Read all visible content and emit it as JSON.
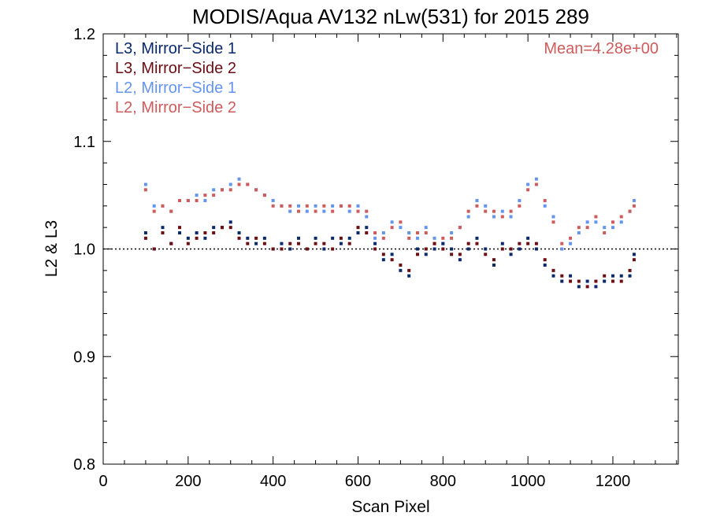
{
  "chart_data": {
    "type": "scatter",
    "title": "MODIS/Aqua AV132 nLw(531) for 2015 289",
    "xlabel": "Scan Pixel",
    "ylabel": "L2 & L3",
    "xlim": [
      0,
      1354
    ],
    "ylim": [
      0.8,
      1.2
    ],
    "x_ticks": [
      {
        "value": 0,
        "label": "0"
      },
      {
        "value": 200,
        "label": "200"
      },
      {
        "value": 400,
        "label": "400"
      },
      {
        "value": 600,
        "label": "600"
      },
      {
        "value": 800,
        "label": "800"
      },
      {
        "value": 1000,
        "label": "1000"
      },
      {
        "value": 1200,
        "label": "1200"
      }
    ],
    "y_ticks": [
      {
        "value": 0.8,
        "label": "0.8"
      },
      {
        "value": 0.9,
        "label": "0.9"
      },
      {
        "value": 1.0,
        "label": "1.0"
      },
      {
        "value": 1.1,
        "label": "1.1"
      },
      {
        "value": 1.2,
        "label": "1.2"
      }
    ],
    "reference_line": 1.0,
    "annotation": "Mean=4.28e+00",
    "annotation_color": "#cd5c5c",
    "legend_position": "top-left",
    "series": [
      {
        "name": "L3, Mirror−Side 1",
        "color": "#0a2a6b",
        "x": [
          100,
          120,
          140,
          160,
          180,
          200,
          220,
          240,
          260,
          280,
          300,
          320,
          340,
          360,
          380,
          400,
          420,
          440,
          460,
          480,
          500,
          520,
          540,
          560,
          580,
          600,
          620,
          640,
          660,
          680,
          700,
          720,
          740,
          760,
          780,
          800,
          820,
          840,
          860,
          880,
          900,
          920,
          940,
          960,
          980,
          1000,
          1020,
          1040,
          1060,
          1080,
          1100,
          1120,
          1140,
          1160,
          1180,
          1200,
          1220,
          1240,
          1250
        ],
        "y": [
          1.015,
          1.0,
          1.02,
          1.005,
          1.015,
          1.01,
          1.015,
          1.01,
          1.02,
          1.02,
          1.025,
          1.015,
          1.01,
          1.005,
          1.01,
          1.0,
          1.005,
          1.0,
          1.01,
          1.0,
          1.01,
          1.0,
          1.01,
          1.005,
          1.01,
          1.015,
          1.02,
          1.005,
          0.99,
          0.995,
          0.98,
          0.975,
          1.0,
          0.995,
          1.0,
          1.005,
          1.0,
          0.99,
          1.0,
          1.01,
          1.0,
          0.985,
          1.005,
          0.995,
          1.0,
          1.01,
          1.0,
          0.985,
          0.975,
          0.97,
          0.975,
          0.965,
          0.97,
          0.965,
          0.97,
          0.975,
          0.975,
          0.975,
          0.995
        ]
      },
      {
        "name": "L3, Mirror−Side 2",
        "color": "#6b0f14",
        "x": [
          100,
          120,
          140,
          160,
          180,
          200,
          220,
          240,
          260,
          280,
          300,
          320,
          340,
          360,
          380,
          400,
          420,
          440,
          460,
          480,
          500,
          520,
          540,
          560,
          580,
          600,
          620,
          640,
          660,
          680,
          700,
          720,
          740,
          760,
          780,
          800,
          820,
          840,
          860,
          880,
          900,
          920,
          940,
          960,
          980,
          1000,
          1020,
          1040,
          1060,
          1080,
          1100,
          1120,
          1140,
          1160,
          1180,
          1200,
          1220,
          1240,
          1250
        ],
        "y": [
          1.01,
          1.0,
          1.015,
          1.005,
          1.02,
          1.005,
          1.01,
          1.015,
          1.015,
          1.02,
          1.02,
          1.01,
          1.005,
          1.01,
          1.005,
          1.0,
          1.0,
          1.005,
          1.005,
          1.0,
          1.005,
          1.005,
          1.0,
          1.01,
          1.005,
          1.02,
          1.015,
          1.0,
          0.995,
          0.99,
          0.985,
          0.98,
          0.995,
          1.0,
          1.005,
          1.0,
          0.995,
          0.995,
          1.005,
          1.005,
          0.995,
          0.99,
          1.0,
          1.0,
          1.005,
          1.005,
          1.005,
          0.99,
          0.98,
          0.975,
          0.97,
          0.97,
          0.965,
          0.97,
          0.975,
          0.97,
          0.97,
          0.98,
          0.99
        ]
      },
      {
        "name": "L2, Mirror−Side 1",
        "color": "#6495ed",
        "x": [
          100,
          120,
          140,
          160,
          180,
          200,
          220,
          240,
          260,
          280,
          300,
          320,
          340,
          360,
          380,
          400,
          420,
          440,
          460,
          480,
          500,
          520,
          540,
          560,
          580,
          600,
          620,
          640,
          660,
          680,
          700,
          720,
          740,
          760,
          780,
          800,
          820,
          840,
          860,
          880,
          900,
          920,
          940,
          960,
          980,
          1000,
          1020,
          1040,
          1060,
          1080,
          1100,
          1120,
          1140,
          1160,
          1180,
          1200,
          1220,
          1240,
          1250
        ],
        "y": [
          1.06,
          1.04,
          1.04,
          1.035,
          1.045,
          1.045,
          1.05,
          1.045,
          1.055,
          1.055,
          1.06,
          1.065,
          1.06,
          1.055,
          1.05,
          1.045,
          1.04,
          1.035,
          1.04,
          1.035,
          1.04,
          1.035,
          1.04,
          1.04,
          1.035,
          1.04,
          1.03,
          1.01,
          1.015,
          1.025,
          1.02,
          1.015,
          1.01,
          1.02,
          1.01,
          1.005,
          1.015,
          1.02,
          1.03,
          1.045,
          1.04,
          1.03,
          1.035,
          1.03,
          1.045,
          1.06,
          1.065,
          1.04,
          1.03,
          1.0,
          1.005,
          1.015,
          1.025,
          1.025,
          1.02,
          1.02,
          1.025,
          1.035,
          1.045
        ]
      },
      {
        "name": "L2, Mirror−Side 2",
        "color": "#cd5c5c",
        "x": [
          100,
          120,
          140,
          160,
          180,
          200,
          220,
          240,
          260,
          280,
          300,
          320,
          340,
          360,
          380,
          400,
          420,
          440,
          460,
          480,
          500,
          520,
          540,
          560,
          580,
          600,
          620,
          640,
          660,
          680,
          700,
          720,
          740,
          760,
          780,
          800,
          820,
          840,
          860,
          880,
          900,
          920,
          940,
          960,
          980,
          1000,
          1020,
          1040,
          1060,
          1080,
          1100,
          1120,
          1140,
          1160,
          1180,
          1200,
          1220,
          1240,
          1250
        ],
        "y": [
          1.055,
          1.035,
          1.04,
          1.035,
          1.045,
          1.045,
          1.045,
          1.05,
          1.05,
          1.055,
          1.055,
          1.06,
          1.06,
          1.055,
          1.05,
          1.04,
          1.04,
          1.04,
          1.035,
          1.04,
          1.035,
          1.04,
          1.035,
          1.04,
          1.04,
          1.035,
          1.035,
          1.015,
          1.01,
          1.02,
          1.025,
          1.01,
          1.015,
          1.015,
          1.005,
          1.01,
          1.01,
          1.02,
          1.035,
          1.04,
          1.035,
          1.035,
          1.03,
          1.035,
          1.04,
          1.055,
          1.06,
          1.045,
          1.025,
          1.005,
          1.01,
          1.02,
          1.02,
          1.03,
          1.015,
          1.025,
          1.03,
          1.035,
          1.04
        ]
      }
    ]
  }
}
